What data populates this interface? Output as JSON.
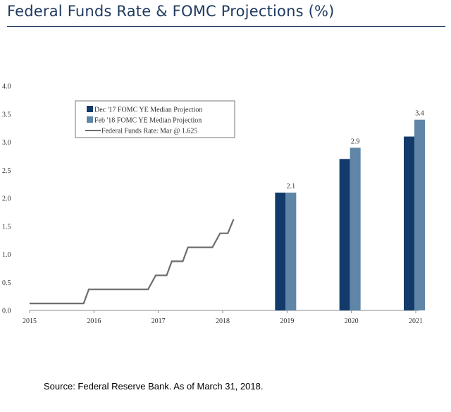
{
  "header": {
    "title": "Federal Funds Rate & FOMC Projections (%)"
  },
  "footer": {
    "source": "Source: Federal Reserve Bank. As of March 31, 2018."
  },
  "colors": {
    "title": "#1f3a60",
    "dark_bar": "#123a6b",
    "light_bar": "#5f86a6",
    "line": "#6d6d6d",
    "axis": "#8c8c8c"
  },
  "chart_data": {
    "type": "bar",
    "title": "",
    "xlabel": "",
    "ylabel": "",
    "ylim": [
      0,
      4.0
    ],
    "xlim": [
      2015,
      2021
    ],
    "y_ticks": [
      "0.0",
      "0.5",
      "1.0",
      "1.5",
      "2.0",
      "2.5",
      "3.0",
      "3.5",
      "4.0"
    ],
    "x_ticks": [
      "2015",
      "2016",
      "2017",
      "2018",
      "2019",
      "2020",
      "2021"
    ],
    "grid": false,
    "legend_position": "top-left",
    "categories": [
      "2019",
      "2020",
      "2021"
    ],
    "series": [
      {
        "name": "Dec '17 FOMC YE Median Projection",
        "type": "bar",
        "color": "#123a6b",
        "values": [
          2.1,
          2.7,
          3.1
        ]
      },
      {
        "name": "Feb '18 FOMC YE Median Projection",
        "type": "bar",
        "color": "#5f86a6",
        "values": [
          2.1,
          2.9,
          3.4
        ],
        "labels": [
          "2.1",
          "2.9",
          "3.4"
        ]
      },
      {
        "name": "Federal Funds Rate: Mar @ 1.625",
        "type": "line",
        "color": "#6d6d6d",
        "x": [
          2015.0,
          2015.84,
          2015.92,
          2016.84,
          2016.96,
          2017.13,
          2017.21,
          2017.38,
          2017.46,
          2017.84,
          2017.96,
          2018.08,
          2018.17
        ],
        "y": [
          0.125,
          0.125,
          0.375,
          0.375,
          0.625,
          0.625,
          0.875,
          0.875,
          1.125,
          1.125,
          1.375,
          1.375,
          1.625
        ]
      }
    ]
  }
}
